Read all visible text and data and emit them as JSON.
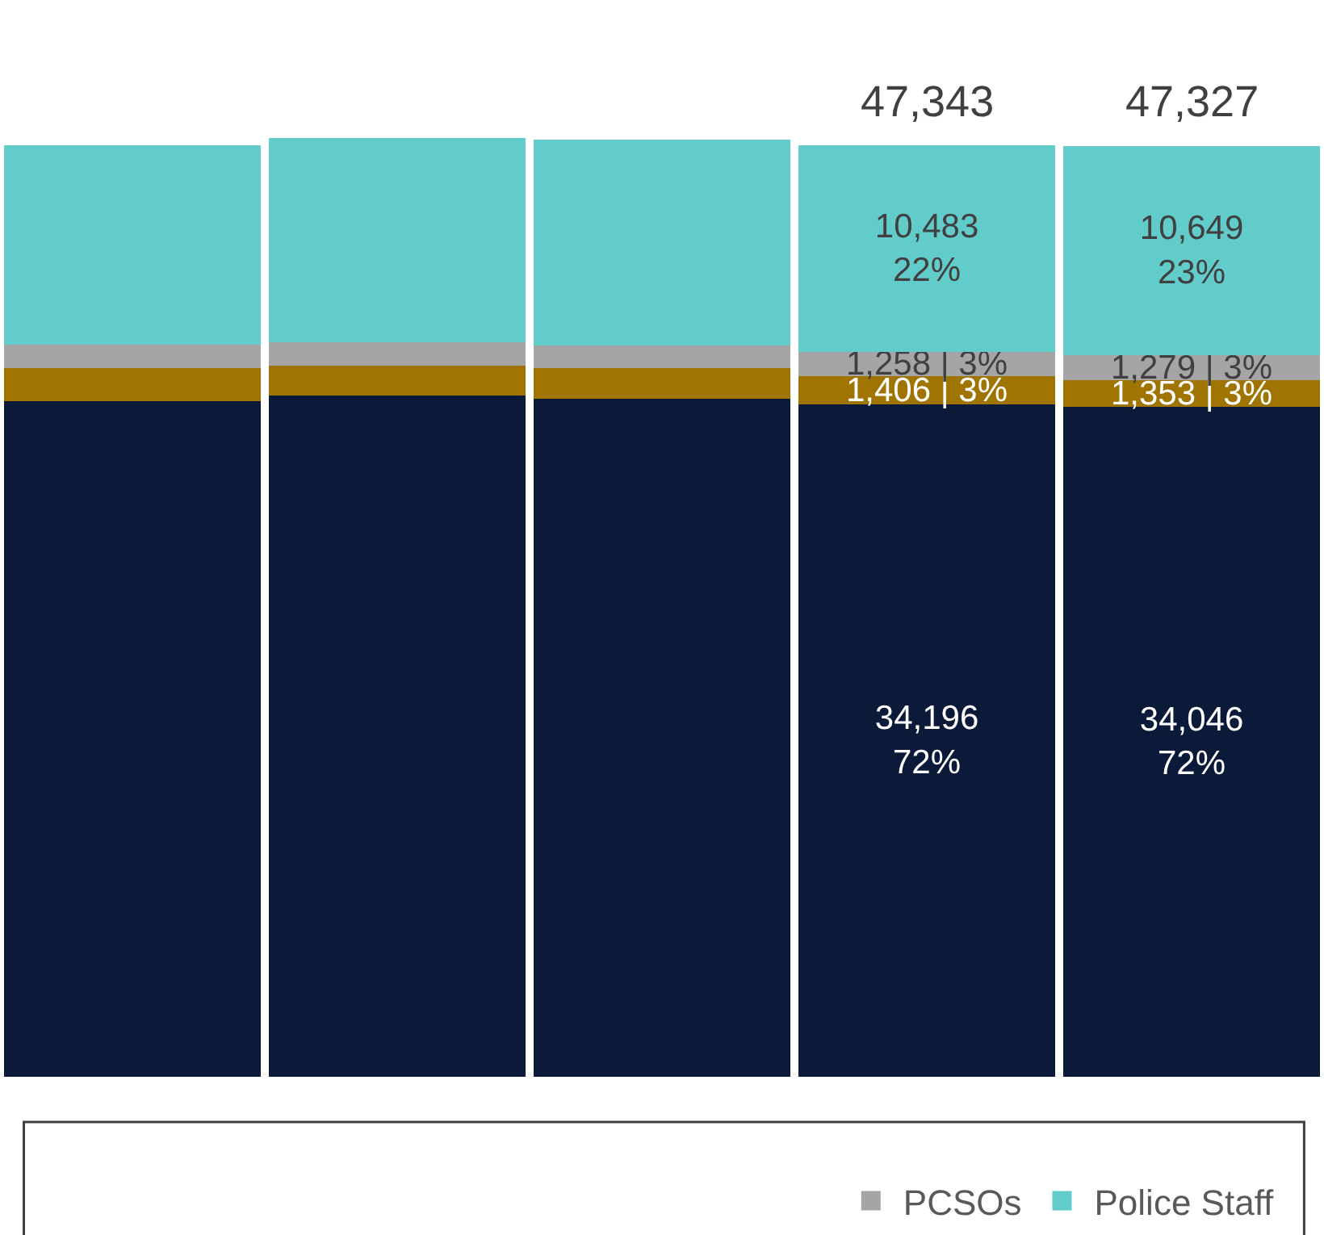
{
  "chart_data": {
    "type": "bar",
    "stacked": true,
    "categories": [
      null,
      null,
      null,
      null,
      null
    ],
    "series": [
      {
        "color": "#0b1a38",
        "values": [
          34330,
          34620,
          34470,
          34196,
          34046
        ],
        "value_labels": [
          null,
          null,
          null,
          "34,196\n72%",
          "34,046\n72%"
        ]
      },
      {
        "color": "#a07400",
        "values": [
          1700,
          1550,
          1550,
          1406,
          1353
        ],
        "value_labels": [
          null,
          null,
          null,
          "1,406 | 3%",
          "1,353 | 3%"
        ]
      },
      {
        "name": "PCSOs",
        "color": "#a5a5a5",
        "values": [
          1180,
          1180,
          1180,
          1258,
          1279
        ],
        "value_labels": [
          null,
          null,
          null,
          "1,258 | 3%",
          "1,279 | 3%"
        ]
      },
      {
        "name": "Police Staff",
        "color": "#62cccb",
        "values": [
          10130,
          10360,
          10430,
          10483,
          10649
        ],
        "value_labels": [
          null,
          null,
          null,
          "10,483\n22%",
          "10,649\n23%"
        ]
      }
    ],
    "totals": [
      null,
      null,
      null,
      "47,343",
      "47,327"
    ],
    "legend": "bottom"
  }
}
